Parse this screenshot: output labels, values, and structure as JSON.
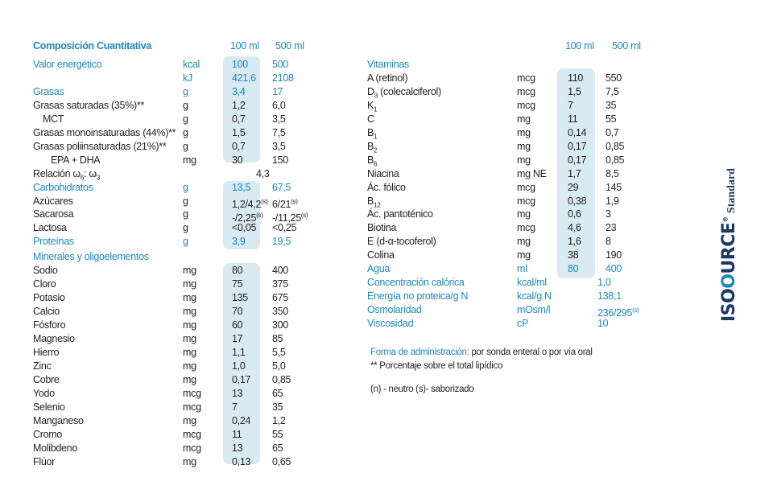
{
  "left": {
    "title": "Composición Cuantitativa",
    "col_100": "100 ml",
    "col_500": "500 ml",
    "rows": [
      {
        "label": "Valor energético",
        "unit": "kcal",
        "v100": "100",
        "v500": "500",
        "blue": true
      },
      {
        "label": "",
        "unit": "kJ",
        "v100": "421,6",
        "v500": "2108",
        "blue": true
      },
      {
        "label": "Grasas",
        "unit": "g",
        "v100": "3,4",
        "v500": "17",
        "blue": true
      },
      {
        "label": "Grasas saturadas (35%)**",
        "unit": "g",
        "v100": "1,2",
        "v500": "6,0"
      },
      {
        "label": "MCT",
        "unit": "g",
        "v100": "0,7",
        "v500": "3,5",
        "indent": 12
      },
      {
        "label": "Grasas monoinsaturadas (44%)**",
        "unit": "g",
        "v100": "1,5",
        "v500": "7,5"
      },
      {
        "label": "Grasas poliinsaturadas (21%)**",
        "unit": "g",
        "v100": "0,7",
        "v500": "3,5"
      },
      {
        "label": "EPA + DHA",
        "unit": "mg",
        "v100": "30",
        "v500": "150",
        "indent": 22
      },
      {
        "label": "Relación ω6: ω3",
        "unit": "",
        "v100": "",
        "v500": "",
        "span": "4,3"
      },
      {
        "label": "Carbohidratos",
        "unit": "g",
        "v100": "13,5",
        "v500": "67,5",
        "blue": true
      },
      {
        "label": "Azúcares",
        "unit": "g",
        "v100": "1,2/4,2(s)",
        "v500": "6/21(s)"
      },
      {
        "label": "Sacarosa",
        "unit": "g",
        "v100": "-/2,25(s)",
        "v500": "-/11,25(s)"
      },
      {
        "label": "Lactosa",
        "unit": "g",
        "v100": "<0,05",
        "v500": "<0,25"
      },
      {
        "label": "Proteínas",
        "unit": "g",
        "v100": "3,9",
        "v500": "19,5",
        "blue": true
      },
      {
        "label": "Minerales y oligoelementos",
        "unit": "",
        "v100": "",
        "v500": "",
        "blue": true
      },
      {
        "label": "Sodio",
        "unit": "mg",
        "v100": "80",
        "v500": "400"
      },
      {
        "label": "Cloro",
        "unit": "mg",
        "v100": "75",
        "v500": "375"
      },
      {
        "label": "Potasio",
        "unit": "mg",
        "v100": "135",
        "v500": "675"
      },
      {
        "label": "Calcio",
        "unit": "mg",
        "v100": "70",
        "v500": "350"
      },
      {
        "label": "Fósforo",
        "unit": "mg",
        "v100": "60",
        "v500": "300"
      },
      {
        "label": "Magnesio",
        "unit": "mg",
        "v100": "17",
        "v500": "85"
      },
      {
        "label": "Hierro",
        "unit": "mg",
        "v100": "1,1",
        "v500": "5,5"
      },
      {
        "label": "Zinc",
        "unit": "mg",
        "v100": "1,0",
        "v500": "5,0"
      },
      {
        "label": "Cobre",
        "unit": "mg",
        "v100": "0,17",
        "v500": "0,85"
      },
      {
        "label": "Yodo",
        "unit": "mcg",
        "v100": "13",
        "v500": "65"
      },
      {
        "label": "Selenio",
        "unit": "mcg",
        "v100": "7",
        "v500": "35"
      },
      {
        "label": "Manganeso",
        "unit": "mg",
        "v100": "0,24",
        "v500": "1,2"
      },
      {
        "label": "Cromo",
        "unit": "mcg",
        "v100": "11",
        "v500": "55"
      },
      {
        "label": "Molibdeno",
        "unit": "mcg",
        "v100": "13",
        "v500": "65"
      },
      {
        "label": "Flúor",
        "unit": "mg",
        "v100": "0,13",
        "v500": "0,65"
      }
    ]
  },
  "right": {
    "col_100": "100 ml",
    "col_500": "500 ml",
    "rows": [
      {
        "label": "Vitaminas",
        "unit": "",
        "v100": "",
        "v500": "",
        "blue": true
      },
      {
        "label": "A (retinol)",
        "unit": "mcg",
        "v100": "110",
        "v500": "550"
      },
      {
        "label": "D3 (colecalciferol)",
        "unit": "mcg",
        "v100": "1,5",
        "v500": "7,5"
      },
      {
        "label": "K1",
        "unit": "mcg",
        "v100": "7",
        "v500": "35"
      },
      {
        "label": "C",
        "unit": "mg",
        "v100": "11",
        "v500": "55"
      },
      {
        "label": "B1",
        "unit": "mg",
        "v100": "0,14",
        "v500": "0,7"
      },
      {
        "label": "B2",
        "unit": "mg",
        "v100": "0,17",
        "v500": "0,85"
      },
      {
        "label": "B6",
        "unit": "mg",
        "v100": "0,17",
        "v500": "0,85"
      },
      {
        "label": "Niacina",
        "unit": "mg NE",
        "v100": "1,7",
        "v500": "8,5"
      },
      {
        "label": "Ác. fólico",
        "unit": "mcg",
        "v100": "29",
        "v500": "145"
      },
      {
        "label": "B12",
        "unit": "mcg",
        "v100": "0,38",
        "v500": "1,9"
      },
      {
        "label": "Ác. pantoténico",
        "unit": "mg",
        "v100": "0,6",
        "v500": "3"
      },
      {
        "label": "Biotina",
        "unit": "mcg",
        "v100": "4,6",
        "v500": "23"
      },
      {
        "label": "E (d-α-tocoferol)",
        "unit": "mg",
        "v100": "1,6",
        "v500": "8"
      },
      {
        "label": "Colina",
        "unit": "mg",
        "v100": "38",
        "v500": "190"
      },
      {
        "label": "Agua",
        "unit": "ml",
        "v100": "80",
        "v500": "400",
        "blue": true
      },
      {
        "label": "Concentración calórica",
        "unit": "kcal/ml",
        "v100": "",
        "v500": "",
        "span": "1,0",
        "blue": true
      },
      {
        "label": "Energía no proteica/g N",
        "unit": "kcal/g N",
        "v100": "",
        "v500": "",
        "span": "138,1",
        "blue": true
      },
      {
        "label": "Osmolaridad",
        "unit": "mOsm/l",
        "v100": "",
        "v500": "",
        "span": "236/295(s)",
        "blue": true
      },
      {
        "label": "Viscosidad",
        "unit": "cP",
        "v100": "",
        "v500": "",
        "span": "10",
        "blue": true
      }
    ]
  },
  "notes": {
    "admin_label": "Forma de administración:",
    "admin_text": " por sonda enteral o por vía oral",
    "footnote": "** Porcentaje sobre el total lipídico",
    "legend": "(n) - neutro (s)- saborizado"
  },
  "logo": {
    "brand_start": "ISO",
    "brand_o": "O",
    "brand_end": "URCE",
    "reg": "®",
    "variant": "Standard"
  },
  "colors": {
    "accent": "#1e88b8",
    "highlight": "#d9eaf3",
    "text": "#231f20",
    "brand": "#1a3a63"
  }
}
